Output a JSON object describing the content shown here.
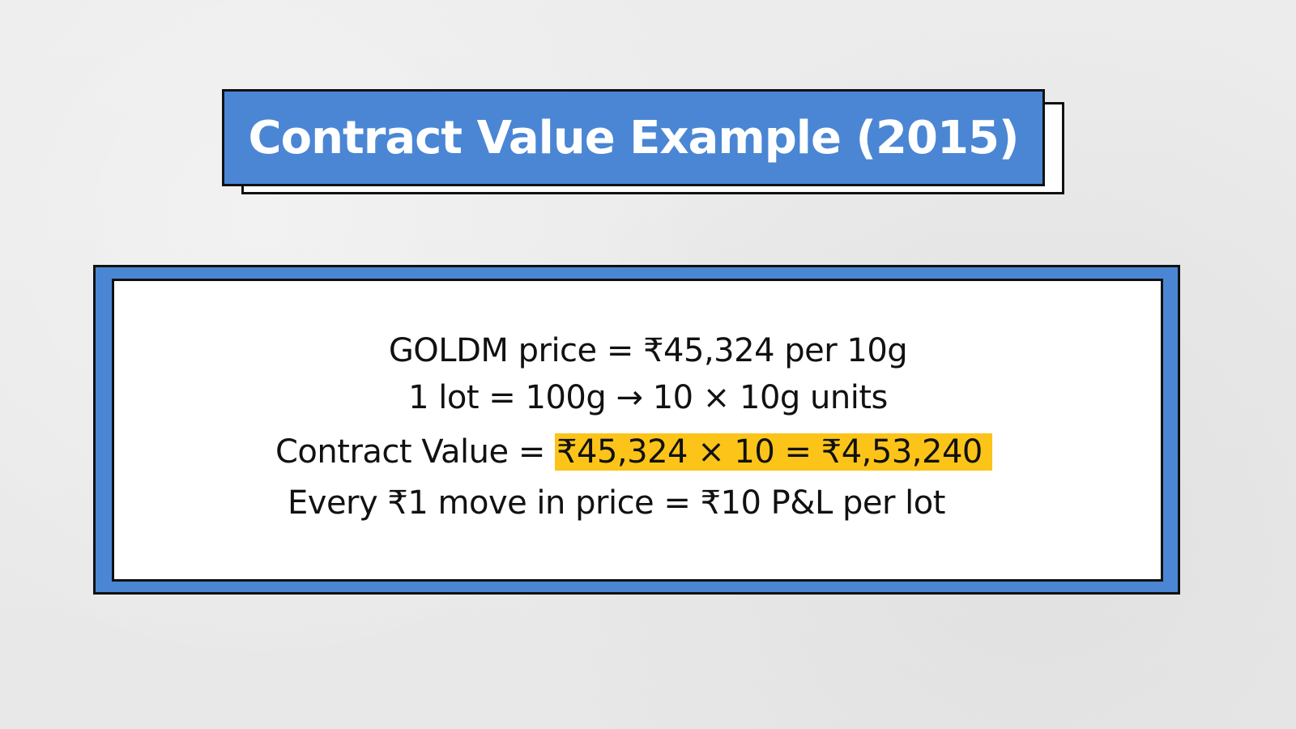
{
  "slide": {
    "title": "Contract Value Example (2015)",
    "lines": {
      "price": "GOLDM price = ₹45,324 per 10g",
      "lot": "1 lot = 100g → 10 × 10g units",
      "contract_label": "Contract Value = ",
      "contract_value": "₹45,324 × 10 = ₹4,53,240",
      "pnl": "Every ₹1 move in price = ₹10 P&L per lot"
    }
  },
  "colors": {
    "background": "#ebebeb",
    "accent_blue": "#4a86d4",
    "highlight_yellow": "#fcc419",
    "border": "#111111",
    "text": "#111111"
  }
}
